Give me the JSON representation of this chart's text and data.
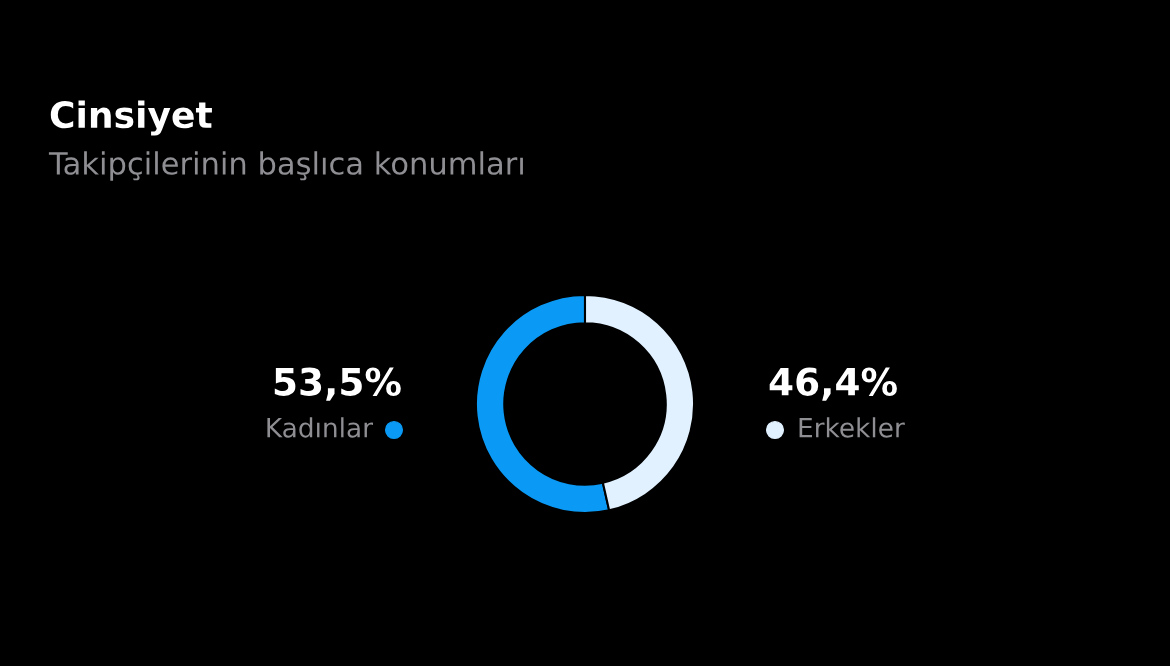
{
  "chart_data": {
    "type": "donut",
    "title": "Cinsiyet",
    "subtitle": "Takipçilerinin başlıca konumları",
    "categories": [
      "Kadınlar",
      "Erkekler"
    ],
    "values": [
      53.5,
      46.4
    ],
    "value_labels": [
      "53,5%",
      "46,4%"
    ],
    "colors": [
      "#0a9af5",
      "#e1f1ff"
    ]
  }
}
